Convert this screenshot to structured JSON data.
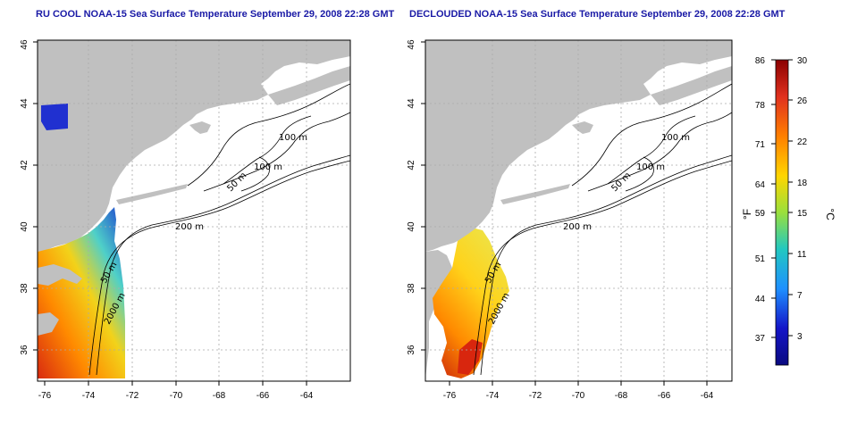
{
  "titles": {
    "left": "RU COOL NOAA-15 Sea Surface Temperature September 29, 2008 22:28 GMT",
    "right": "DECLOUDED NOAA-15 Sea Surface Temperature September 29, 2008 22:28 GMT"
  },
  "map": {
    "lon_ticks": [
      "-76",
      "-74",
      "-72",
      "-70",
      "-68",
      "-66",
      "-64"
    ],
    "lat_ticks": [
      "36",
      "38",
      "40",
      "42",
      "44",
      "46"
    ],
    "contour_labels": {
      "left": [
        "100 m",
        "100 m",
        "50 m",
        "200 m",
        "50 m",
        "2000 m"
      ],
      "right": [
        "100 m",
        "100 m",
        "50 m",
        "200 m",
        "50 m",
        "2000 m"
      ]
    },
    "colors": {
      "land": "#c0c0c0",
      "ocean": "#ffffff",
      "grid": "#aaaaaa",
      "title": "#1a1aa6"
    }
  },
  "colorbar": {
    "fahrenheit_ticks": [
      "86",
      "78",
      "71",
      "64",
      "59",
      "51",
      "44",
      "37"
    ],
    "celsius_ticks": [
      "30",
      "26",
      "22",
      "18",
      "15",
      "11",
      "7",
      "3"
    ],
    "fahrenheit_unit": "°F",
    "celsius_unit": "°C",
    "gradient": [
      "#8b0000",
      "#e0301e",
      "#ff7f00",
      "#ffd500",
      "#9ae03c",
      "#22c8c0",
      "#1e90ff",
      "#1414c8",
      "#0a0a80"
    ]
  }
}
